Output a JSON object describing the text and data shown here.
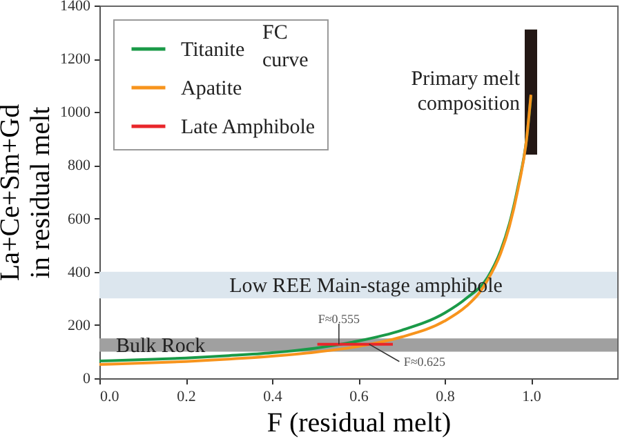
{
  "chart_data": {
    "type": "line",
    "xlabel": "F (residual melt)",
    "ylabel": "La+Ce+Sm+Gd\nin residual melt",
    "xlim": [
      0,
      1.2
    ],
    "xticks": [
      {
        "value": 0,
        "label": "0.0"
      },
      {
        "value": 0.2,
        "label": "0.2"
      },
      {
        "value": 0.4,
        "label": "0.4"
      },
      {
        "value": 0.6,
        "label": "0.6"
      },
      {
        "value": 0.8,
        "label": "0.8"
      },
      {
        "value": 1,
        "label": "1.0"
      }
    ],
    "ylim": [
      0,
      1400
    ],
    "yticks": [
      0,
      200,
      400,
      600,
      800,
      1000,
      1200,
      1400
    ],
    "series": [
      {
        "name": "Titanite",
        "color": "#1a9a48",
        "x": [
          0,
          0.1,
          0.2,
          0.3,
          0.4,
          0.5,
          0.6,
          0.7,
          0.8,
          0.85,
          0.9,
          0.93,
          0.95,
          0.97,
          0.99,
          1.0
        ],
        "values": [
          65,
          70,
          76,
          85,
          96,
          113,
          140,
          180,
          245,
          300,
          380,
          480,
          580,
          720,
          900,
          1060
        ]
      },
      {
        "name": "Apatite",
        "color": "#f7941d",
        "x": [
          0,
          0.1,
          0.2,
          0.3,
          0.4,
          0.5,
          0.6,
          0.7,
          0.8,
          0.85,
          0.88,
          0.9,
          0.93,
          0.95,
          0.97,
          0.99,
          1.0
        ],
        "values": [
          52,
          57,
          63,
          72,
          83,
          98,
          120,
          155,
          215,
          270,
          320,
          370,
          470,
          570,
          710,
          900,
          1065
        ]
      },
      {
        "name": "Late Amphibole",
        "color": "#e8262a",
        "x": [
          0.505,
          0.68
        ],
        "values": [
          128,
          128
        ]
      },
      {
        "type": "bar",
        "name": "Primary melt composition",
        "color": "#231815",
        "x": [
          1.0
        ],
        "base": [
          840
        ],
        "values": [
          470
        ]
      }
    ],
    "bands": [
      {
        "axis": "y",
        "from": 300,
        "to": 400,
        "label": "Low REE Main-stage amphibole",
        "color": "#dce6ee"
      },
      {
        "axis": "y",
        "from": 100,
        "to": 150,
        "label": "Bulk Rock",
        "color": "#a0a0a0"
      }
    ],
    "annotations": [
      "FC curve",
      {
        "text": "F≈0.555",
        "x": 0.555,
        "y": 128
      },
      {
        "text": "F≈0.625",
        "x": 0.625,
        "y": 128
      }
    ],
    "legend": "top left",
    "grid": false
  }
}
